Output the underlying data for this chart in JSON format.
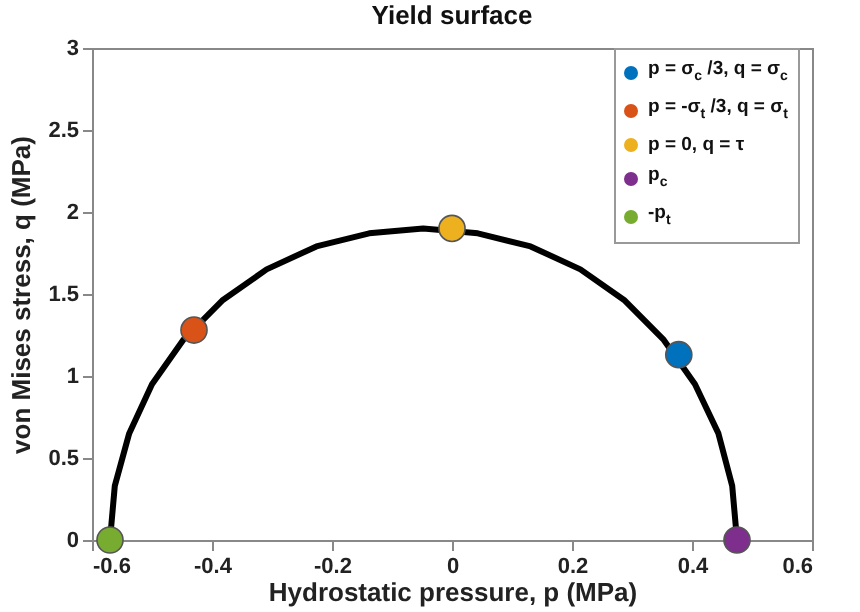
{
  "chart_data": {
    "type": "scatter",
    "title": "Yield surface",
    "xlabel": "Hydrostatic pressure, p (MPa)",
    "ylabel": "von Mises stress, q (MPa)",
    "xlim": [
      -0.6,
      0.6
    ],
    "xticks": [
      -0.6,
      -0.4,
      -0.2,
      0,
      0.2,
      0.4,
      0.6
    ],
    "ylim": [
      0,
      3
    ],
    "yticks": [
      0,
      0.5,
      1,
      1.5,
      2,
      2.5,
      3
    ],
    "grid": false,
    "legend": "top right",
    "marker": "circle",
    "series": [
      {
        "type": "line",
        "color": "#000000",
        "line_style": "solid",
        "marker": "none",
        "x": [
          0.475,
          0.467,
          0.444,
          0.405,
          0.353,
          0.288,
          0.214,
          0.131,
          0.043,
          -0.048,
          -0.138,
          -0.226,
          -0.309,
          -0.383,
          -0.448,
          -0.5,
          -0.538,
          -0.562,
          -0.57
        ],
        "values": [
          0,
          0.33,
          0.65,
          0.95,
          1.22,
          1.46,
          1.65,
          1.79,
          1.87,
          1.9,
          1.87,
          1.79,
          1.65,
          1.46,
          1.22,
          0.95,
          0.65,
          0.33,
          0
        ]
      },
      {
        "name": "p = σ$_{c}$ /3, q = σ$_{c}$",
        "color": "#0072bd",
        "x": [
          0.378
        ],
        "values": [
          1.13
        ]
      },
      {
        "name": "p = -σ$_{t}$ /3, q = σ$_{t}$",
        "color": "#d95319",
        "x": [
          -0.43
        ],
        "values": [
          1.28
        ]
      },
      {
        "name": "p = 0, q = τ",
        "color": "#edb120",
        "x": [
          0
        ],
        "values": [
          1.9
        ]
      },
      {
        "name": "p$_{c}$",
        "color": "#7e2f8e",
        "x": [
          0.475
        ],
        "values": [
          0
        ]
      },
      {
        "name": "-p$_{t}$",
        "color": "#77ac30",
        "x": [
          -0.57
        ],
        "values": [
          0
        ]
      }
    ]
  }
}
